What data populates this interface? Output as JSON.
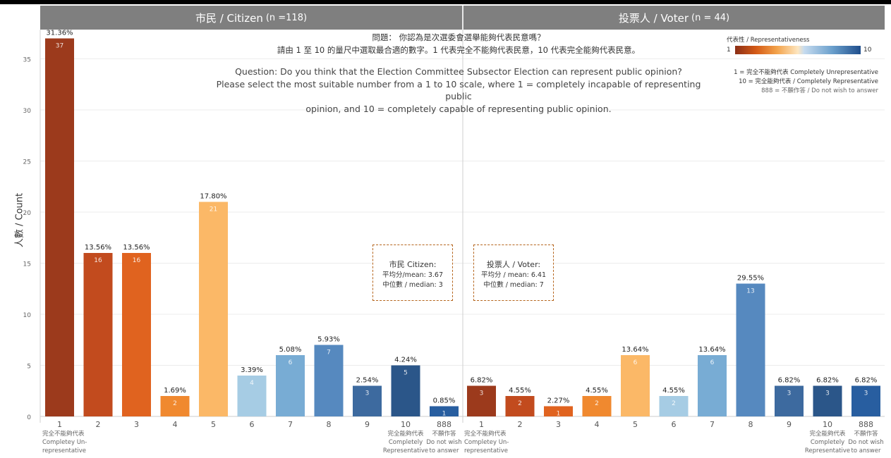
{
  "panels": {
    "citizen": {
      "title": "市民 / Citizen",
      "n_label": "(n =118)"
    },
    "voter": {
      "title": "投票人 / Voter",
      "n_label": "(n = 44)"
    }
  },
  "question": {
    "zh_line1": "問題： 你認為是次選委會選舉能夠代表民意嗎？",
    "zh_line2": "請由 1 至 10 的量尺中選取最合適的數字。1 代表完全不能夠代表民意，10 代表完全能夠代表民意。",
    "en_line1": "Question: Do you think that the Election Committee Subsector Election can represent public opinion?",
    "en_line2": "Please select the most suitable number from a 1 to 10 scale, where 1 = completely incapable of representing public",
    "en_line3": "opinion, and 10 = completely capable of representing public opinion."
  },
  "legend": {
    "title": "代表性 / Representativeness",
    "min": "1",
    "max": "10",
    "note1": "1 = 完全不能夠代表 Completely Unrepresentative",
    "note2": "10 = 完全能夠代表 / Completely Representative",
    "note3": "888 = 不願作答 / Do not wish to answer"
  },
  "stats": {
    "citizen": {
      "title": "市民 Citizen:",
      "mean": "平均分/mean: 3.67",
      "median": "中位數 / median: 3"
    },
    "voter": {
      "title": "投票人 / Voter:",
      "mean": "平均分 / mean: 6.41",
      "median": "中位數 / median: 7"
    }
  },
  "chart_data": {
    "type": "bar",
    "ylabel": "人數 / Count",
    "ylim": [
      0,
      37
    ],
    "yticks": [
      0,
      5,
      10,
      15,
      20,
      25,
      30,
      35
    ],
    "colors": {
      "1": "#9c3a1c",
      "2": "#c24b1e",
      "3": "#e0631f",
      "4": "#f0892f",
      "5": "#fbb867",
      "6": "#a6cce4",
      "7": "#78acd4",
      "8": "#5689bf",
      "9": "#3d6a9f",
      "10": "#2b5689",
      "888": "#285ea0"
    },
    "panels": [
      {
        "name": "Citizen",
        "categories": [
          "1",
          "2",
          "3",
          "4",
          "5",
          "6",
          "7",
          "8",
          "9",
          "10",
          "888"
        ],
        "values": [
          37,
          16,
          16,
          2,
          21,
          4,
          6,
          7,
          3,
          5,
          1
        ],
        "percent_labels": [
          "31.36%",
          "13.56%",
          "13.56%",
          "1.69%",
          "17.80%",
          "3.39%",
          "5.08%",
          "5.93%",
          "2.54%",
          "4.24%",
          "0.85%"
        ]
      },
      {
        "name": "Voter",
        "categories": [
          "1",
          "2",
          "3",
          "4",
          "5",
          "6",
          "7",
          "8",
          "9",
          "10",
          "888"
        ],
        "values": [
          3,
          2,
          1,
          2,
          6,
          2,
          6,
          13,
          3,
          3,
          3
        ],
        "percent_labels": [
          "6.82%",
          "4.55%",
          "2.27%",
          "4.55%",
          "13.64%",
          "4.55%",
          "13.64%",
          "29.55%",
          "6.82%",
          "6.82%",
          "6.82%"
        ]
      }
    ],
    "x_sublabels": {
      "1": [
        "完全不能夠代表",
        "Completey Un-",
        "representative"
      ],
      "10": [
        "完全能夠代表",
        "Completely",
        "Representative"
      ],
      "888": [
        "不願作答",
        "Do not wish",
        "to answer"
      ]
    }
  }
}
